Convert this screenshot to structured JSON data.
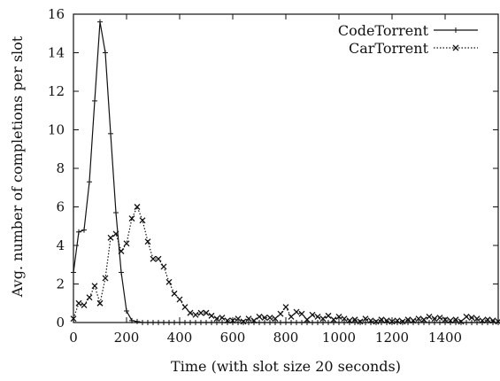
{
  "chart_data": {
    "type": "line",
    "title": "",
    "xlabel": "Time (with slot size 20 seconds)",
    "ylabel": "Avg. number of completions per slot",
    "xlim": [
      0,
      1600
    ],
    "ylim": [
      0,
      16
    ],
    "xticks": [
      "0",
      "200",
      "400",
      "600",
      "800",
      "1000",
      "1200",
      "1400"
    ],
    "yticks": [
      "0",
      "2",
      "4",
      "6",
      "8",
      "10",
      "12",
      "14",
      "16"
    ],
    "grid": false,
    "legend_position": "top-right",
    "series": [
      {
        "name": "CodeTorrent",
        "line_style": "solid",
        "marker": "plus",
        "color": "#111111",
        "x": [
          0,
          20,
          40,
          60,
          80,
          100,
          120,
          140,
          160,
          180,
          200,
          220,
          240,
          260,
          280,
          300,
          320,
          340,
          360,
          380,
          400,
          420,
          440,
          460,
          480,
          500,
          520,
          540,
          560,
          580,
          600,
          620,
          640,
          660,
          680,
          700,
          720,
          740,
          760,
          780,
          800,
          820,
          840,
          860,
          880,
          900,
          920,
          940,
          960,
          980,
          1000,
          1020,
          1040,
          1060,
          1080,
          1100,
          1120,
          1140,
          1160,
          1180,
          1200,
          1220,
          1240,
          1260,
          1280,
          1300,
          1320,
          1340,
          1360,
          1380,
          1400,
          1420,
          1440,
          1460,
          1480,
          1500,
          1520,
          1540,
          1560,
          1580,
          1600
        ],
        "y": [
          2.6,
          4.7,
          4.8,
          7.3,
          11.5,
          15.6,
          14.0,
          9.8,
          5.7,
          2.6,
          0.6,
          0.1,
          0.05,
          0,
          0,
          0,
          0,
          0,
          0,
          0,
          0,
          0,
          0,
          0,
          0,
          0,
          0,
          0,
          0,
          0,
          0,
          0,
          0,
          0,
          0,
          0,
          0,
          0,
          0,
          0,
          0,
          0,
          0,
          0,
          0,
          0,
          0,
          0,
          0,
          0,
          0,
          0,
          0,
          0,
          0,
          0,
          0,
          0,
          0,
          0,
          0,
          0,
          0,
          0,
          0,
          0,
          0,
          0,
          0,
          0,
          0,
          0,
          0,
          0,
          0,
          0,
          0,
          0,
          0,
          0,
          0
        ]
      },
      {
        "name": "CarTorrent",
        "line_style": "dotted",
        "marker": "x",
        "color": "#111111",
        "x": [
          0,
          20,
          40,
          60,
          80,
          100,
          120,
          140,
          160,
          180,
          200,
          220,
          240,
          260,
          280,
          300,
          320,
          340,
          360,
          380,
          400,
          420,
          440,
          460,
          480,
          500,
          520,
          540,
          560,
          580,
          600,
          620,
          640,
          660,
          680,
          700,
          720,
          740,
          760,
          780,
          800,
          820,
          840,
          860,
          880,
          900,
          920,
          940,
          960,
          980,
          1000,
          1020,
          1040,
          1060,
          1080,
          1100,
          1120,
          1140,
          1160,
          1180,
          1200,
          1220,
          1240,
          1260,
          1280,
          1300,
          1320,
          1340,
          1360,
          1380,
          1400,
          1420,
          1440,
          1460,
          1480,
          1500,
          1520,
          1540,
          1560,
          1580,
          1600
        ],
        "y": [
          0.2,
          1.0,
          0.9,
          1.3,
          1.9,
          1.0,
          2.3,
          4.4,
          4.6,
          3.7,
          4.1,
          5.4,
          6.0,
          5.3,
          4.2,
          3.3,
          3.3,
          2.9,
          2.1,
          1.5,
          1.2,
          0.8,
          0.5,
          0.4,
          0.5,
          0.5,
          0.35,
          0.2,
          0.25,
          0.1,
          0.1,
          0.2,
          0.05,
          0.2,
          0.1,
          0.3,
          0.25,
          0.25,
          0.2,
          0.45,
          0.8,
          0.3,
          0.55,
          0.45,
          0.15,
          0.4,
          0.3,
          0.2,
          0.35,
          0.15,
          0.3,
          0.2,
          0.1,
          0.15,
          0.05,
          0.2,
          0.1,
          0.05,
          0.15,
          0.1,
          0.05,
          0.1,
          0.05,
          0.15,
          0.1,
          0.2,
          0.15,
          0.3,
          0.2,
          0.25,
          0.15,
          0.1,
          0.15,
          0.05,
          0.3,
          0.25,
          0.2,
          0.1,
          0.15,
          0.1,
          0.05
        ]
      }
    ]
  }
}
